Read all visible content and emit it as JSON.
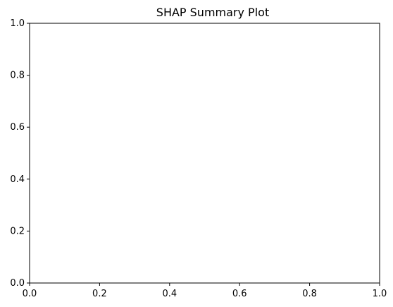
{
  "chart_data": {
    "type": "scatter",
    "title": "SHAP Summary Plot",
    "xlabel": "",
    "ylabel": "",
    "xlim": [
      0,
      1
    ],
    "ylim": [
      0,
      1
    ],
    "x_ticks": [
      0.0,
      0.2,
      0.4,
      0.6,
      0.8,
      1.0
    ],
    "y_ticks": [
      0.0,
      0.2,
      0.4,
      0.6,
      0.8,
      1.0
    ],
    "x_tick_labels": [
      "0.0",
      "0.2",
      "0.4",
      "0.6",
      "0.8",
      "1.0"
    ],
    "y_tick_labels": [
      "0.0",
      "0.2",
      "0.4",
      "0.6",
      "0.8",
      "1.0"
    ],
    "series": [],
    "grid": false,
    "legend": "none",
    "colors": {
      "axes": "#000000",
      "background": "#ffffff"
    }
  }
}
